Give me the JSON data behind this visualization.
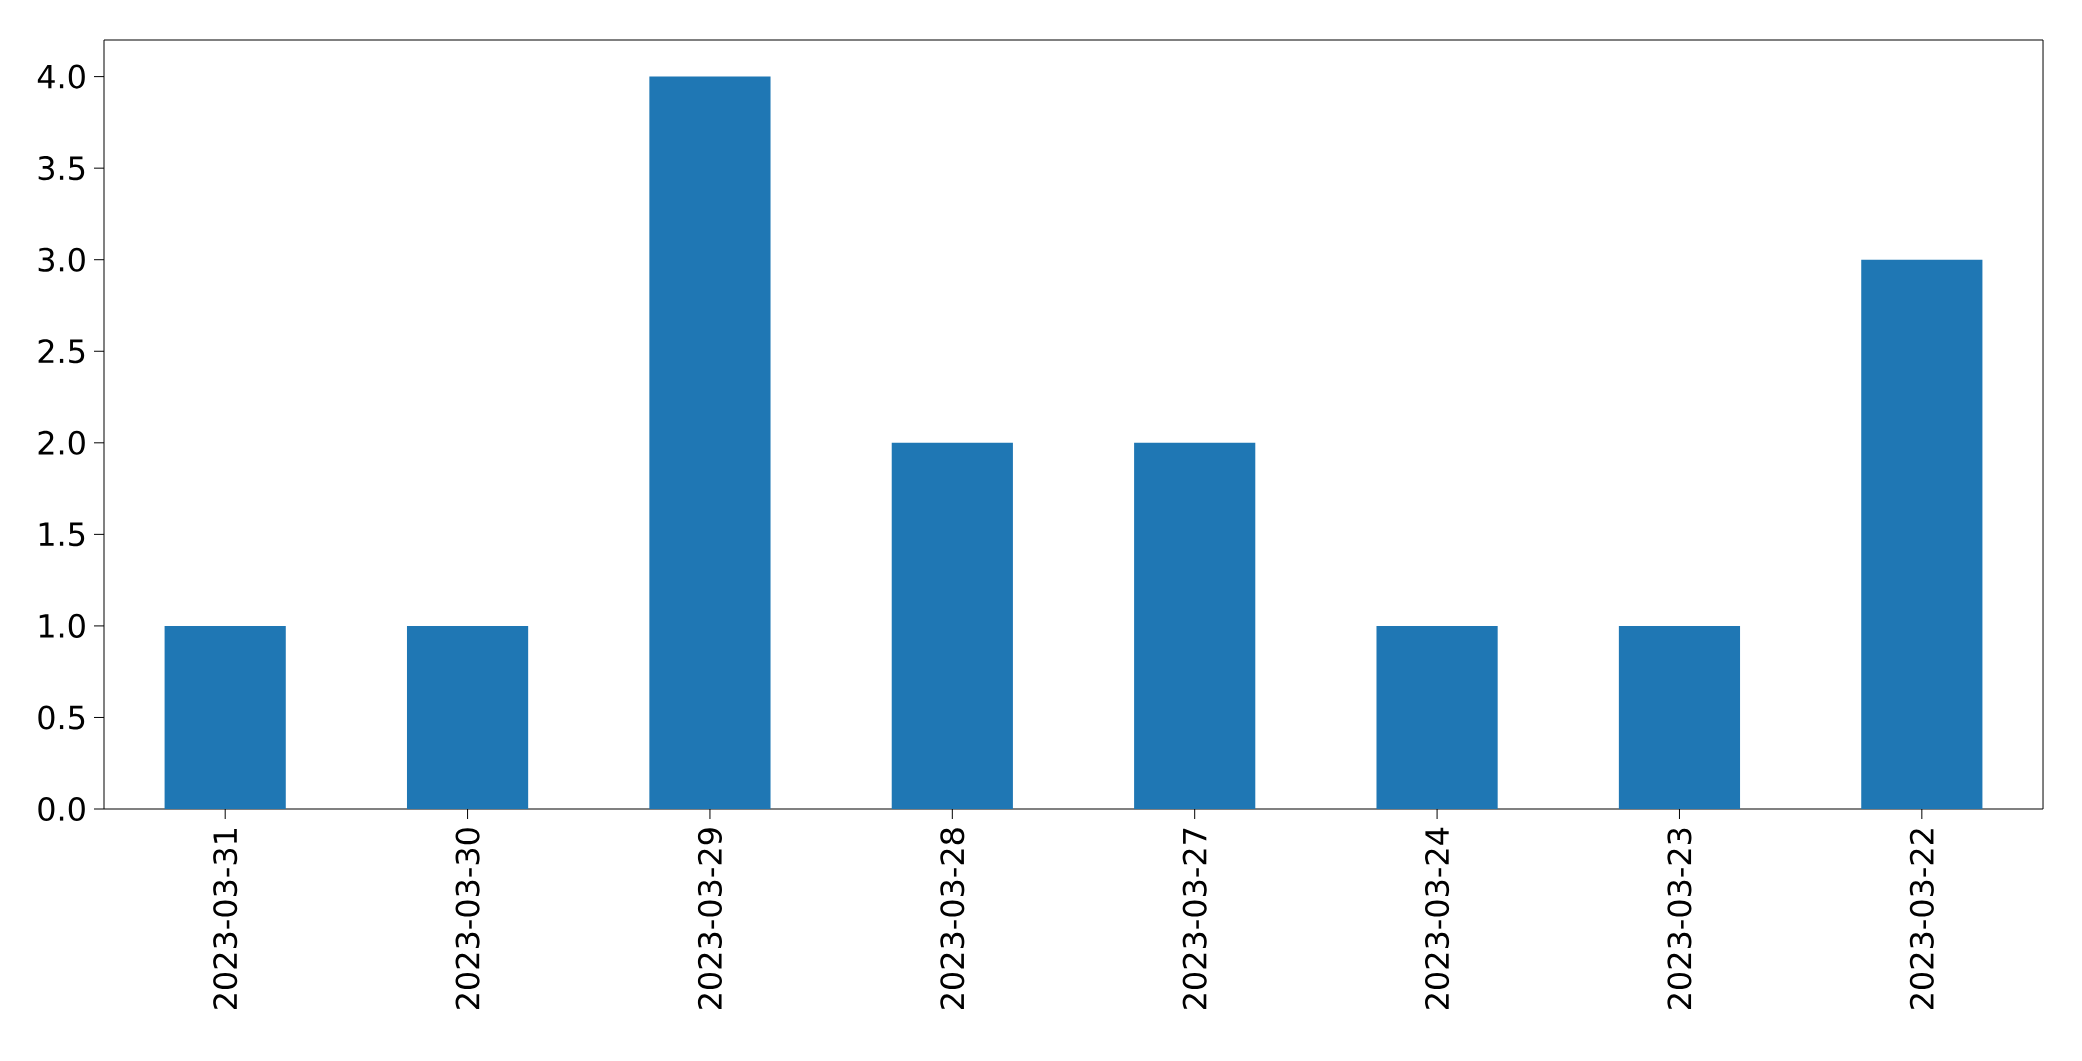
{
  "chart_data": {
    "type": "bar",
    "categories": [
      "2023-03-31",
      "2023-03-30",
      "2023-03-29",
      "2023-03-28",
      "2023-03-27",
      "2023-03-24",
      "2023-03-23",
      "2023-03-22"
    ],
    "values": [
      1,
      1,
      4,
      2,
      2,
      1,
      1,
      3
    ],
    "color": "#1f77b4",
    "ylim": [
      0,
      4.2
    ],
    "yticks": [
      {
        "value": 0,
        "label": "0.0"
      },
      0.5,
      {
        "value": 1,
        "label": "1.0"
      },
      1.5,
      {
        "value": 2,
        "label": "2.0"
      },
      2.5,
      {
        "value": 3,
        "label": "3.0"
      },
      3.5,
      {
        "value": 4,
        "label": "4.0"
      }
    ],
    "grid": false
  }
}
